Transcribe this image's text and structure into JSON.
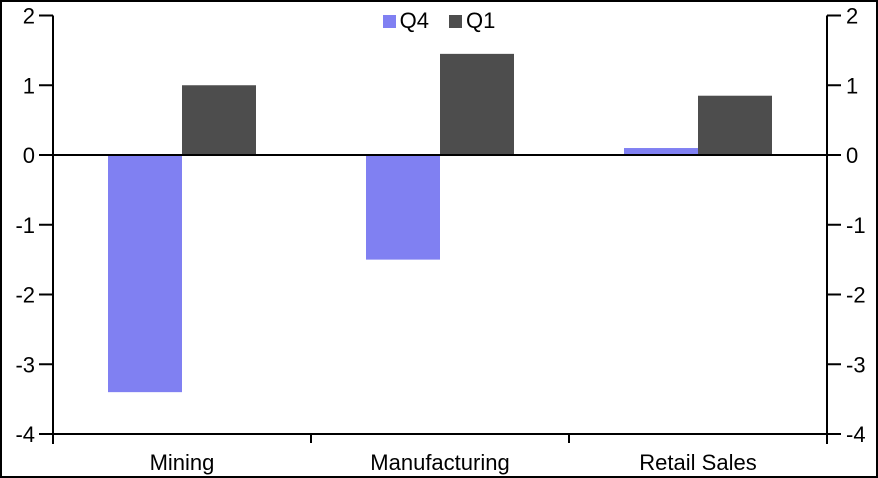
{
  "chart_data": {
    "type": "bar",
    "categories": [
      "Mining",
      "Manufacturing",
      "Retail Sales"
    ],
    "series": [
      {
        "name": "Q4",
        "color": "#8080F2",
        "values": [
          -3.4,
          -1.5,
          0.1
        ]
      },
      {
        "name": "Q1",
        "color": "#4D4D4D",
        "values": [
          1.0,
          1.45,
          0.85
        ]
      }
    ],
    "title": "",
    "xlabel": "",
    "ylabel": "",
    "ylim": [
      -4,
      2
    ],
    "yticks": [
      2,
      1,
      0,
      -1,
      -2,
      -3,
      -4
    ],
    "y_axis_left": true,
    "y_axis_right": true,
    "grid": false,
    "legend_position": "top-center"
  },
  "colors": {
    "axis": "#000000",
    "text": "#000000",
    "background": "#FFFFFF",
    "border": "#000000"
  }
}
